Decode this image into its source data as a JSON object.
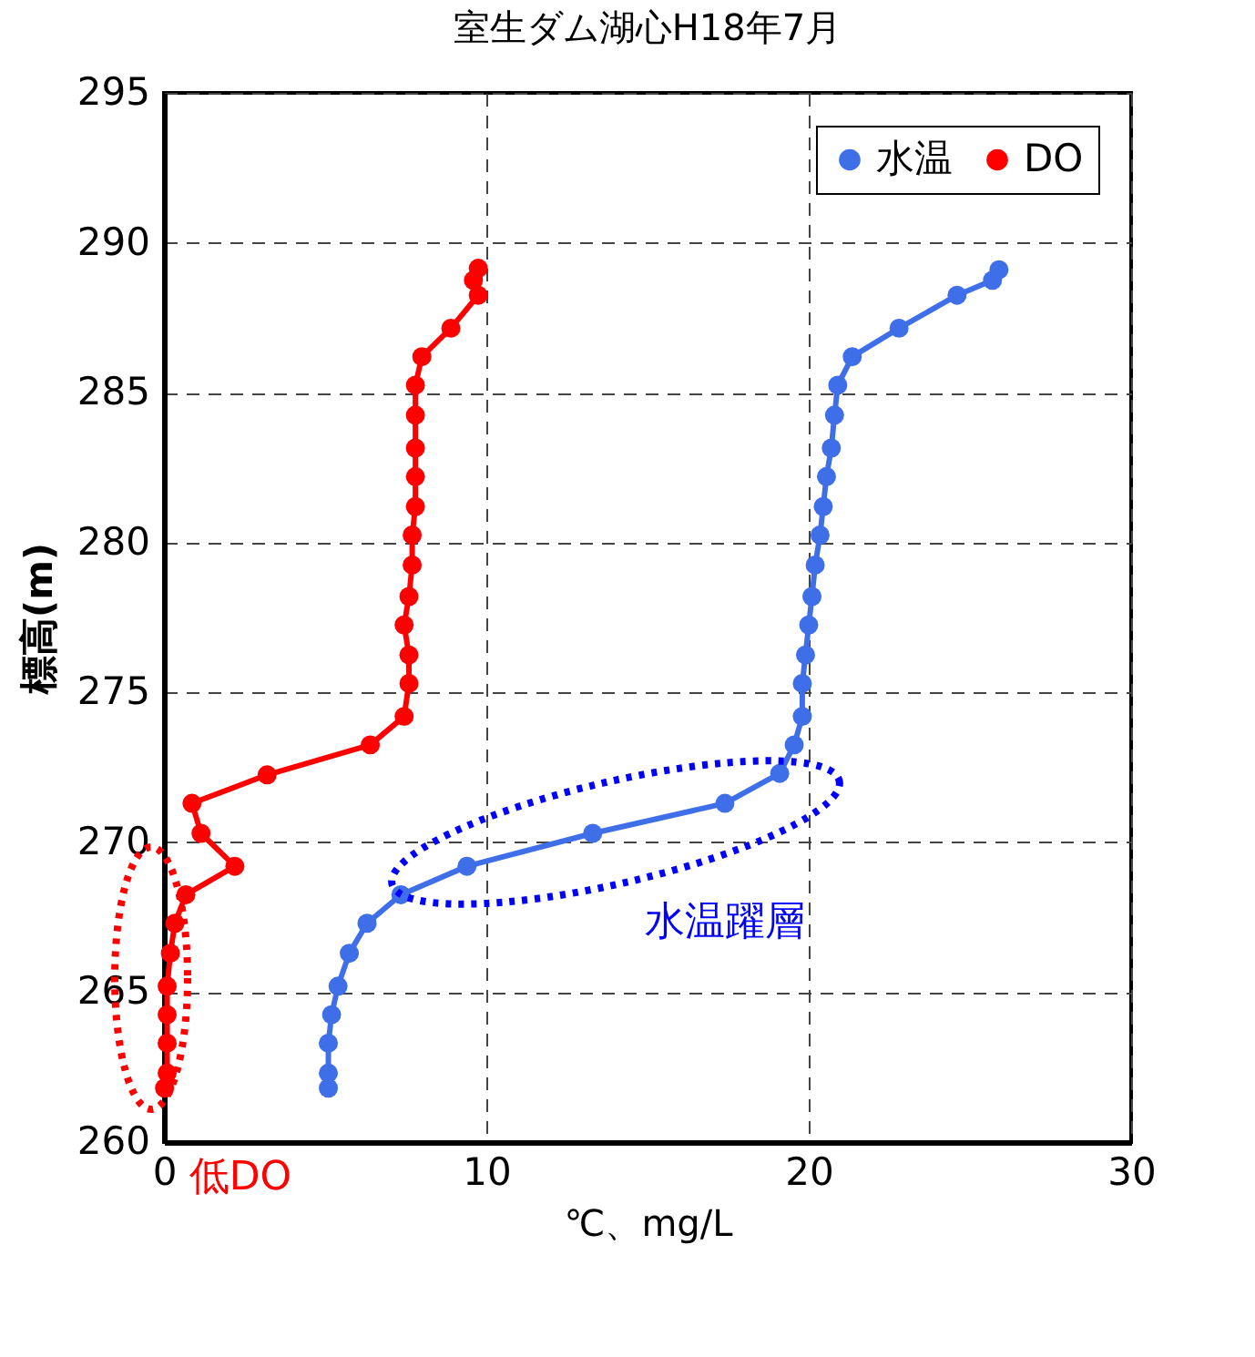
{
  "chart_data": {
    "type": "line",
    "title": "室生ダム湖心H18年7月",
    "xlabel": "℃、mg/L",
    "ylabel": "標高(m)",
    "xlim": [
      0,
      30
    ],
    "xticks": [
      0,
      10,
      20,
      30
    ],
    "ylim": [
      260,
      295
    ],
    "yticks": [
      260,
      265,
      270,
      275,
      280,
      285,
      290,
      295
    ],
    "grid": true,
    "legend": "top right",
    "marker": "circle",
    "series": [
      {
        "name": "水温",
        "color": "#3f6fe8",
        "x": [
          25.9,
          25.7,
          24.6,
          22.8,
          21.35,
          20.9,
          20.8,
          20.7,
          20.55,
          20.45,
          20.35,
          20.2,
          20.1,
          20.0,
          19.9,
          19.8,
          19.8,
          19.55,
          19.1,
          17.4,
          13.3,
          9.4,
          7.35,
          6.3,
          5.75,
          5.4,
          5.2,
          5.1,
          5.1,
          5.1
        ],
        "values": [
          289.1,
          288.75,
          288.25,
          287.15,
          286.2,
          285.25,
          284.25,
          283.15,
          282.2,
          281.2,
          280.25,
          279.25,
          278.2,
          277.25,
          276.25,
          275.3,
          274.2,
          273.25,
          272.3,
          271.3,
          270.3,
          269.2,
          268.25,
          267.3,
          266.3,
          265.2,
          264.25,
          263.3,
          262.3,
          261.8
        ]
      },
      {
        "name": "DO",
        "color": "#ff0000",
        "x": [
          9.75,
          9.6,
          9.75,
          8.9,
          8.0,
          7.8,
          7.8,
          7.8,
          7.8,
          7.8,
          7.7,
          7.7,
          7.6,
          7.45,
          7.6,
          7.6,
          7.45,
          6.4,
          3.2,
          0.87,
          1.15,
          2.2,
          0.68,
          0.34,
          0.2,
          0.1,
          0.1,
          0.1,
          0.1,
          0.02
        ],
        "values": [
          289.15,
          288.75,
          288.25,
          287.15,
          286.2,
          285.25,
          284.25,
          283.15,
          282.2,
          281.2,
          280.25,
          279.25,
          278.2,
          277.25,
          276.25,
          275.3,
          274.2,
          273.25,
          272.25,
          271.3,
          270.3,
          269.2,
          268.25,
          267.3,
          266.3,
          265.2,
          264.25,
          263.3,
          262.3,
          261.8
        ]
      }
    ],
    "annotations": [
      "水温躍層",
      "低DO"
    ]
  }
}
